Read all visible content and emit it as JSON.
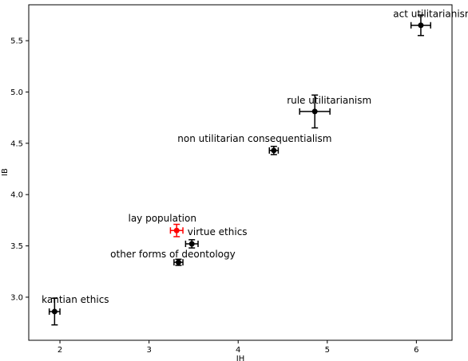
{
  "chart_data": {
    "type": "scatter",
    "title": "",
    "xlabel": "IH",
    "ylabel": "IB",
    "xlim": [
      1.65,
      6.4
    ],
    "ylim": [
      2.58,
      5.85
    ],
    "xticks": [
      2,
      3,
      4,
      5,
      6
    ],
    "yticks": [
      3.0,
      3.5,
      4.0,
      4.5,
      5.0,
      5.5
    ],
    "grid": false,
    "points": [
      {
        "label": "act utilitarianism",
        "x": 6.05,
        "y": 5.65,
        "xerr": 0.11,
        "yerr": 0.1,
        "color": "#000000"
      },
      {
        "label": "rule utilitarianism",
        "x": 4.86,
        "y": 4.81,
        "xerr": 0.17,
        "yerr": 0.16,
        "color": "#000000"
      },
      {
        "label": "non utilitarian consequentialism",
        "x": 4.4,
        "y": 4.43,
        "xerr": 0.05,
        "yerr": 0.04,
        "color": "#000000"
      },
      {
        "label": "lay population",
        "x": 3.31,
        "y": 3.65,
        "xerr": 0.07,
        "yerr": 0.06,
        "color": "#ff0000"
      },
      {
        "label": "virtue ethics",
        "x": 3.48,
        "y": 3.52,
        "xerr": 0.07,
        "yerr": 0.04,
        "color": "#000000"
      },
      {
        "label": "other forms of deontology",
        "x": 3.33,
        "y": 3.34,
        "xerr": 0.05,
        "yerr": 0.03,
        "color": "#000000"
      },
      {
        "label": "kantian ethics",
        "x": 1.94,
        "y": 2.86,
        "xerr": 0.06,
        "yerr": 0.13,
        "color": "#000000"
      }
    ]
  }
}
